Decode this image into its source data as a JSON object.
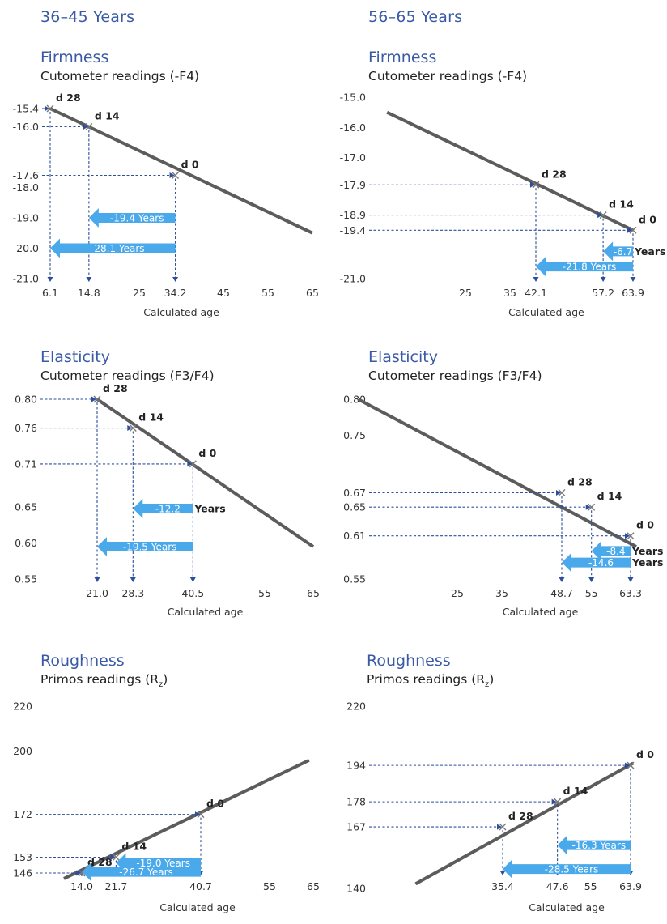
{
  "columns": {
    "left_header": "36–45 Years",
    "right_header": "56–65 Years"
  },
  "colors": {
    "title_blue": "#3a5aa6",
    "line_gray": "#5c5c5c",
    "arrow_blue": "#4aa9ea",
    "guide_blue": "#2d4e9c"
  },
  "chart_data": [
    {
      "id": "firm-left",
      "type": "line",
      "title": "Firmness",
      "subtitle": "Cutometer readings (-F4)",
      "xlabel": "Calculated age",
      "x_ticks": [
        "6.1",
        "14.8",
        "25",
        "34.2",
        "45",
        "55",
        "65"
      ],
      "y_ticks": [
        "-15.4",
        "-16.0",
        "-17.6",
        "-18.0",
        "-19.0",
        "-20.0",
        "-21.0"
      ],
      "line": {
        "x": [
          6.1,
          65
        ],
        "y": [
          -15.4,
          -19.5
        ]
      },
      "points": [
        {
          "label": "d 28",
          "x": 6.1,
          "y": -15.4
        },
        {
          "label": "d 14",
          "x": 14.8,
          "y": -16.0
        },
        {
          "label": "d 0",
          "x": 34.2,
          "y": -17.6
        }
      ],
      "improvements": [
        {
          "label": "-19.4 Years",
          "from": 34.2,
          "to": 14.8,
          "y": -19.0
        },
        {
          "label": "-28.1 Years",
          "from": 34.2,
          "to": 6.1,
          "y": -20.0
        }
      ]
    },
    {
      "id": "firm-right",
      "type": "line",
      "title": "Firmness",
      "subtitle": "Cutometer readings (-F4)",
      "xlabel": "Calculated age",
      "x_ticks": [
        "25",
        "35",
        "42.1",
        "57.2",
        "63.9"
      ],
      "y_ticks": [
        "-15.0",
        "-16.0",
        "-17.0",
        "-17.9",
        "-18.9",
        "-19.4",
        "-21.0"
      ],
      "line": {
        "x": [
          8.7,
          63.9
        ],
        "y": [
          -15.5,
          -19.4
        ]
      },
      "points": [
        {
          "label": "d 28",
          "x": 42.1,
          "y": -17.9
        },
        {
          "label": "d 14",
          "x": 57.2,
          "y": -18.9
        },
        {
          "label": "d 0",
          "x": 63.9,
          "y": -19.4
        }
      ],
      "improvements": [
        {
          "label": "-6.7",
          "suffix": "Years",
          "from": 63.9,
          "to": 57.2,
          "y": -20.1
        },
        {
          "label": "-21.8 Years",
          "from": 63.9,
          "to": 42.1,
          "y": -20.6
        }
      ]
    },
    {
      "id": "elast-left",
      "type": "line",
      "title": "Elasticity",
      "subtitle": "Cutometer readings (F3/F4)",
      "xlabel": "Calculated age",
      "x_ticks": [
        "21.0",
        "28.3",
        "40.5",
        "55",
        "65"
      ],
      "y_ticks": [
        "0.80",
        "0.76",
        "0.71",
        "0.65",
        "0.60",
        "0.55"
      ],
      "line": {
        "x": [
          21.0,
          65
        ],
        "y": [
          0.8,
          0.595
        ]
      },
      "points": [
        {
          "label": "d 28",
          "x": 21.0,
          "y": 0.8
        },
        {
          "label": "d 14",
          "x": 28.3,
          "y": 0.76
        },
        {
          "label": "d 0",
          "x": 40.5,
          "y": 0.71
        }
      ],
      "improvements": [
        {
          "label": "-12.2",
          "suffix": "Years",
          "from": 40.5,
          "to": 28.3,
          "y": 0.648
        },
        {
          "label": "-19.5 Years",
          "from": 40.5,
          "to": 21.0,
          "y": 0.595
        }
      ]
    },
    {
      "id": "elast-right",
      "type": "line",
      "title": "Elasticity",
      "subtitle": "Cutometer readings (F3/F4)",
      "xlabel": "Calculated age",
      "x_ticks": [
        "25",
        "35",
        "48.7",
        "55",
        "63.3"
      ],
      "y_ticks": [
        "0.80",
        "0.75",
        "0.67",
        "0.65",
        "0.61",
        "0.55"
      ],
      "line": {
        "x": [
          5.5,
          64.5
        ],
        "y": [
          0.8,
          0.595
        ]
      },
      "points": [
        {
          "label": "d 28",
          "x": 48.7,
          "y": 0.67
        },
        {
          "label": "d 14",
          "x": 55,
          "y": 0.65
        },
        {
          "label": "d 0",
          "x": 63.3,
          "y": 0.61
        }
      ],
      "improvements": [
        {
          "label": "-8.4",
          "suffix": "Years",
          "from": 63.3,
          "to": 55,
          "y": 0.589
        },
        {
          "label": "-14.6",
          "suffix": "Years",
          "from": 63.3,
          "to": 48.7,
          "y": 0.573
        }
      ]
    },
    {
      "id": "rough-left",
      "type": "line",
      "title": "Roughness",
      "subtitle": "Primos readings (R",
      "subscript": "z",
      "subtitle_end": ")",
      "xlabel": "Calculated age",
      "x_ticks": [
        "14.0",
        "21.7",
        "40.7",
        "55",
        "65"
      ],
      "y_ticks": [
        "220",
        "200",
        "172",
        "153",
        "146"
      ],
      "line": {
        "x": [
          10,
          65
        ],
        "y": [
          143.5,
          196
        ]
      },
      "points": [
        {
          "label": "d 28",
          "x": 14.0,
          "y": 146
        },
        {
          "label": "d 14",
          "x": 21.7,
          "y": 153
        },
        {
          "label": "d 0",
          "x": 40.7,
          "y": 172
        }
      ],
      "improvements": [
        {
          "label": "-19.0 Years",
          "from": 40.7,
          "to": 21.7,
          "y": 150.5
        },
        {
          "label": "-26.7 Years",
          "from": 40.7,
          "to": 14.0,
          "y": 146.5
        }
      ]
    },
    {
      "id": "rough-right",
      "type": "line",
      "title": "Roughness",
      "subtitle": "Primos readings (R",
      "subscript": "z",
      "subtitle_end": ")",
      "xlabel": "Calculated age",
      "x_ticks": [
        "35.4",
        "47.6",
        "55",
        "63.9"
      ],
      "y_ticks": [
        "220",
        "194",
        "178",
        "167",
        "140"
      ],
      "line": {
        "x": [
          16,
          64.5
        ],
        "y": [
          142,
          195
        ]
      },
      "points": [
        {
          "label": "d 28",
          "x": 35.4,
          "y": 167
        },
        {
          "label": "d 14",
          "x": 47.6,
          "y": 178
        },
        {
          "label": "d 0",
          "x": 63.9,
          "y": 194
        }
      ],
      "improvements": [
        {
          "label": "-16.3 Years",
          "from": 63.9,
          "to": 47.6,
          "y": 159
        },
        {
          "label": "-28.5 Years",
          "from": 63.9,
          "to": 35.4,
          "y": 148.5
        }
      ]
    }
  ]
}
